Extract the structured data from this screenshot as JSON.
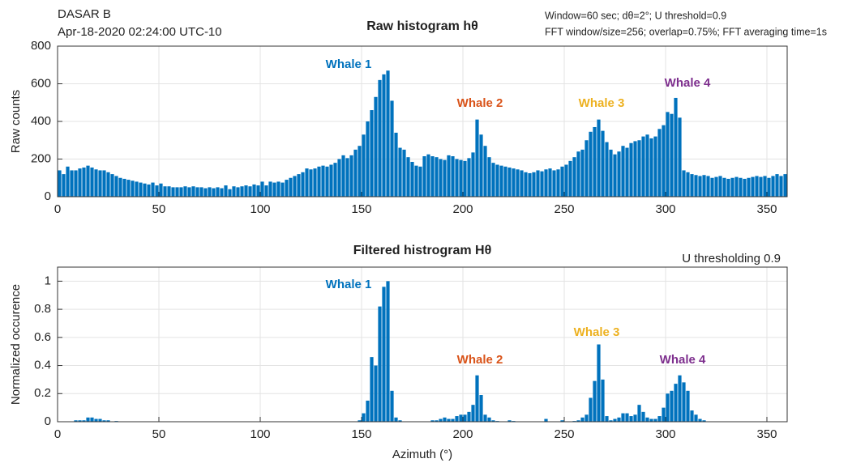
{
  "header": {
    "station": "DASAR B",
    "timestamp": "Apr-18-2020 02:24:00 UTC-10",
    "settings": [
      "Window=60 sec; dθ=2°; U threshold=0.9",
      "FFT window/size=256; overlap=0.75%; FFT averaging time=1s"
    ]
  },
  "chart_data": [
    {
      "type": "histogram",
      "title": "Raw histogram hθ",
      "ylabel": "Raw counts",
      "color": "#0072bd",
      "grid": true,
      "bins": [
        0,
        2,
        4,
        6,
        8,
        10,
        12,
        14,
        16,
        18,
        20,
        22,
        24,
        26,
        28,
        30,
        32,
        34,
        36,
        38,
        40,
        42,
        44,
        46,
        48,
        50,
        52,
        54,
        56,
        58,
        60,
        62,
        64,
        66,
        68,
        70,
        72,
        74,
        76,
        78,
        80,
        82,
        84,
        86,
        88,
        90,
        92,
        94,
        96,
        98,
        100,
        102,
        104,
        106,
        108,
        110,
        112,
        114,
        116,
        118,
        120,
        122,
        124,
        126,
        128,
        130,
        132,
        134,
        136,
        138,
        140,
        142,
        144,
        146,
        148,
        150,
        152,
        154,
        156,
        158,
        160,
        162,
        164,
        166,
        168,
        170,
        172,
        174,
        176,
        178,
        180,
        182,
        184,
        186,
        188,
        190,
        192,
        194,
        196,
        198,
        200,
        202,
        204,
        206,
        208,
        210,
        212,
        214,
        216,
        218,
        220,
        222,
        224,
        226,
        228,
        230,
        232,
        234,
        236,
        238,
        240,
        242,
        244,
        246,
        248,
        250,
        252,
        254,
        256,
        258,
        260,
        262,
        264,
        266,
        268,
        270,
        272,
        274,
        276,
        278,
        280,
        282,
        284,
        286,
        288,
        290,
        292,
        294,
        296,
        298,
        300,
        302,
        304,
        306,
        308,
        310,
        312,
        314,
        316,
        318,
        320,
        322,
        324,
        326,
        328,
        330,
        332,
        334,
        336,
        338,
        340,
        342,
        344,
        346,
        348,
        350,
        352,
        354,
        356,
        358,
        360
      ],
      "values": [
        140,
        120,
        160,
        140,
        140,
        150,
        155,
        165,
        155,
        145,
        140,
        140,
        130,
        120,
        110,
        100,
        95,
        90,
        85,
        80,
        75,
        70,
        65,
        75,
        60,
        70,
        55,
        55,
        50,
        50,
        50,
        55,
        50,
        55,
        50,
        50,
        45,
        50,
        45,
        50,
        45,
        60,
        40,
        55,
        50,
        55,
        60,
        55,
        65,
        60,
        80,
        60,
        80,
        75,
        80,
        75,
        90,
        100,
        110,
        120,
        130,
        150,
        145,
        150,
        160,
        165,
        160,
        170,
        180,
        200,
        220,
        205,
        220,
        250,
        270,
        330,
        400,
        460,
        530,
        620,
        650,
        670,
        510,
        340,
        260,
        250,
        210,
        185,
        165,
        160,
        215,
        225,
        215,
        210,
        200,
        195,
        220,
        215,
        200,
        195,
        190,
        205,
        235,
        410,
        330,
        270,
        210,
        180,
        170,
        165,
        160,
        155,
        150,
        145,
        140,
        130,
        125,
        130,
        140,
        135,
        145,
        150,
        140,
        145,
        160,
        170,
        190,
        210,
        240,
        250,
        300,
        345,
        370,
        410,
        350,
        290,
        250,
        225,
        240,
        270,
        260,
        285,
        295,
        300,
        320,
        330,
        310,
        320,
        360,
        380,
        450,
        440,
        525,
        420,
        140,
        130,
        120,
        115,
        110,
        115,
        110,
        100,
        105,
        110,
        100,
        95,
        100,
        105,
        100,
        95,
        100,
        105,
        110,
        105,
        110,
        100,
        110,
        120,
        110,
        120
      ],
      "xlim": [
        0,
        360
      ],
      "xticks": [
        0,
        50,
        100,
        150,
        200,
        250,
        300,
        350
      ],
      "ylim": [
        0,
        800
      ],
      "yticks": [
        0,
        200,
        400,
        600,
        800
      ],
      "annotations": [
        {
          "text": "Whale 1",
          "color": "#0072bd"
        },
        {
          "text": "Whale 2",
          "color": "#d95319"
        },
        {
          "text": "Whale 3",
          "color": "#edb120"
        },
        {
          "text": "Whale 4",
          "color": "#7e2f8e"
        }
      ]
    },
    {
      "type": "histogram",
      "title": "Filtered histrogram Hθ",
      "ylabel": "Normalized occurence",
      "xlabel": "Azimuth (°)",
      "note": "U thresholding 0.9",
      "color": "#0072bd",
      "grid": true,
      "bins": [
        0,
        2,
        4,
        6,
        8,
        10,
        12,
        14,
        16,
        18,
        20,
        22,
        24,
        26,
        28,
        30,
        32,
        34,
        36,
        38,
        40,
        42,
        44,
        46,
        48,
        50,
        52,
        54,
        56,
        58,
        60,
        62,
        64,
        66,
        68,
        70,
        72,
        74,
        76,
        78,
        80,
        82,
        84,
        86,
        88,
        90,
        92,
        94,
        96,
        98,
        100,
        102,
        104,
        106,
        108,
        110,
        112,
        114,
        116,
        118,
        120,
        122,
        124,
        126,
        128,
        130,
        132,
        134,
        136,
        138,
        140,
        142,
        144,
        146,
        148,
        150,
        152,
        154,
        156,
        158,
        160,
        162,
        164,
        166,
        168,
        170,
        172,
        174,
        176,
        178,
        180,
        182,
        184,
        186,
        188,
        190,
        192,
        194,
        196,
        198,
        200,
        202,
        204,
        206,
        208,
        210,
        212,
        214,
        216,
        218,
        220,
        222,
        224,
        226,
        228,
        230,
        232,
        234,
        236,
        238,
        240,
        242,
        244,
        246,
        248,
        250,
        252,
        254,
        256,
        258,
        260,
        262,
        264,
        266,
        268,
        270,
        272,
        274,
        276,
        278,
        280,
        282,
        284,
        286,
        288,
        290,
        292,
        294,
        296,
        298,
        300,
        302,
        304,
        306,
        308,
        310,
        312,
        314,
        316,
        318,
        320,
        322,
        324,
        326,
        328,
        330,
        332,
        334,
        336,
        338,
        340,
        342,
        344,
        346,
        348,
        350,
        352,
        354,
        356,
        358,
        360
      ],
      "values": [
        0,
        0,
        0,
        0,
        0.01,
        0.01,
        0.01,
        0.03,
        0.03,
        0.02,
        0.02,
        0.01,
        0.01,
        0,
        0.005,
        0,
        0,
        0,
        0,
        0,
        0,
        0,
        0,
        0,
        0,
        0,
        0,
        0,
        0,
        0,
        0,
        0,
        0,
        0,
        0,
        0,
        0,
        0,
        0,
        0,
        0,
        0,
        0,
        0,
        0,
        0,
        0,
        0,
        0,
        0,
        0,
        0,
        0,
        0,
        0,
        0,
        0,
        0,
        0,
        0,
        0,
        0,
        0,
        0,
        0,
        0,
        0,
        0,
        0,
        0,
        0,
        0,
        0,
        0,
        0.01,
        0.06,
        0.15,
        0.46,
        0.4,
        0.82,
        0.96,
        1,
        0.22,
        0.03,
        0.01,
        0,
        0,
        0,
        0,
        0,
        0,
        0,
        0.01,
        0.01,
        0.02,
        0.03,
        0.02,
        0.02,
        0.04,
        0.05,
        0.05,
        0.07,
        0.12,
        0.33,
        0.19,
        0.05,
        0.03,
        0.01,
        0.005,
        0,
        0,
        0.01,
        0.005,
        0,
        0,
        0,
        0,
        0,
        0,
        0,
        0.02,
        0,
        0,
        0,
        0.01,
        0,
        0,
        0.005,
        0.01,
        0.03,
        0.05,
        0.17,
        0.29,
        0.55,
        0.3,
        0.04,
        0.01,
        0.02,
        0.03,
        0.06,
        0.06,
        0.04,
        0.05,
        0.12,
        0.07,
        0.03,
        0.02,
        0.02,
        0.04,
        0.1,
        0.2,
        0.22,
        0.27,
        0.33,
        0.28,
        0.22,
        0.08,
        0.05,
        0.02,
        0.01,
        0,
        0,
        0,
        0,
        0,
        0,
        0,
        0,
        0,
        0,
        0,
        0,
        0,
        0,
        0,
        0,
        0,
        0,
        0,
        0
      ],
      "xlim": [
        0,
        360
      ],
      "xticks": [
        0,
        50,
        100,
        150,
        200,
        250,
        300,
        350
      ],
      "ylim": [
        0,
        1.1
      ],
      "yticks": [
        0,
        0.2,
        0.4,
        0.6,
        0.8,
        1
      ],
      "annotations": [
        {
          "text": "Whale 1",
          "color": "#0072bd"
        },
        {
          "text": "Whale 2",
          "color": "#d95319"
        },
        {
          "text": "Whale 3",
          "color": "#edb120"
        },
        {
          "text": "Whale 4",
          "color": "#7e2f8e"
        }
      ]
    }
  ]
}
